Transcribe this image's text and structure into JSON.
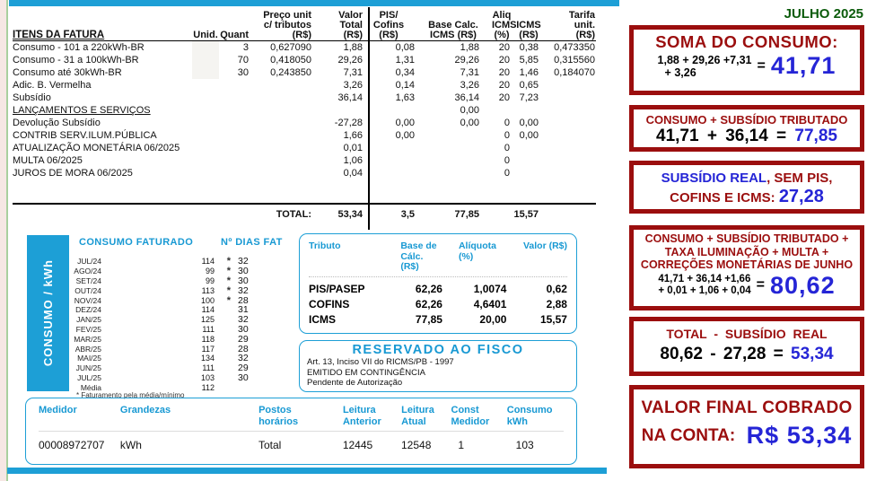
{
  "month_label": "JULHO 2025",
  "colors": {
    "accent_blue": "#1d9fd6",
    "dark_red": "#9b0e0e",
    "result_blue": "#2525d6",
    "dark_green": "#0b5b0b"
  },
  "bill": {
    "header": {
      "itens": "ITENS DA FATURA",
      "unid": "Unid.",
      "quant": "Quant",
      "preco": "Preço unit\nc/ tributos\n(R$)",
      "valor": "Valor\nTotal\n(R$)",
      "pis": "PIS/\nCofins\n(R$)",
      "base": "Base Calc.\nICMS (R$)",
      "aliq": "Aliq\nICMS\n(%)",
      "icms": "ICMS\n(R$)",
      "tarifa": "Tarifa\nunit.\n(R$)"
    },
    "consumption_rows": [
      {
        "item": "Consumo - 101 a 220kWh-BR",
        "unid": "",
        "quant": "3",
        "preco": "0,627090",
        "valor": "1,88",
        "pis": "0,08",
        "base": "1,88",
        "aliq": "20",
        "icms": "0,38",
        "tarifa": "0,473350"
      },
      {
        "item": "Consumo - 31 a 100kWh-BR",
        "unid": "",
        "quant": "70",
        "preco": "0,418050",
        "valor": "29,26",
        "pis": "1,31",
        "base": "29,26",
        "aliq": "20",
        "icms": "5,85",
        "tarifa": "0,315560"
      },
      {
        "item": "Consumo até 30kWh-BR",
        "unid": "",
        "quant": "30",
        "preco": "0,243850",
        "valor": "7,31",
        "pis": "0,34",
        "base": "7,31",
        "aliq": "20",
        "icms": "1,46",
        "tarifa": "0,184070"
      },
      {
        "item": "Adic. B. Vermelha",
        "unid": "",
        "quant": "",
        "preco": "",
        "valor": "3,26",
        "pis": "0,14",
        "base": "3,26",
        "aliq": "20",
        "icms": "0,65",
        "tarifa": ""
      },
      {
        "item": "Subsídio",
        "unid": "",
        "quant": "",
        "preco": "",
        "valor": "36,14",
        "pis": "1,63",
        "base": "36,14",
        "aliq": "20",
        "icms": "7,23",
        "tarifa": ""
      }
    ],
    "section2": {
      "label": "LANÇAMENTOS E SERVIÇOS",
      "base": "0,00"
    },
    "service_rows": [
      {
        "item": "Devolução Subsídio",
        "unid": "",
        "quant": "",
        "preco": "",
        "valor": "-27,28",
        "pis": "0,00",
        "base": "0,00",
        "aliq": "0",
        "icms": "0,00",
        "tarifa": ""
      },
      {
        "item": "CONTRIB SERV.ILUM.PÚBLICA",
        "unid": "",
        "quant": "",
        "preco": "",
        "valor": "1,66",
        "pis": "0,00",
        "base": "",
        "aliq": "0",
        "icms": "0,00",
        "tarifa": ""
      },
      {
        "item": "ATUALIZAÇÃO MONETÁRIA 06/2025",
        "unid": "",
        "quant": "",
        "preco": "",
        "valor": "0,01",
        "pis": "",
        "base": "",
        "aliq": "0",
        "icms": "",
        "tarifa": ""
      },
      {
        "item": "MULTA 06/2025",
        "unid": "",
        "quant": "",
        "preco": "",
        "valor": "1,06",
        "pis": "",
        "base": "",
        "aliq": "0",
        "icms": "",
        "tarifa": ""
      },
      {
        "item": "JUROS DE MORA 06/2025",
        "unid": "",
        "quant": "",
        "preco": "",
        "valor": "0,04",
        "pis": "",
        "base": "",
        "aliq": "0",
        "icms": "",
        "tarifa": ""
      }
    ],
    "total": {
      "label": "TOTAL:",
      "valor": "53,34",
      "pis": "3,5",
      "base": "77,85",
      "icms": "15,57"
    }
  },
  "consumption": {
    "banner": "CONSUMO / kWh",
    "title": "CONSUMO FATURADO",
    "days_title": "Nº DIAS FAT",
    "footnote": "* Faturamento pela média/mínimo",
    "rows": [
      {
        "month": "JUL/24",
        "value": "114",
        "star": "*",
        "days": "32"
      },
      {
        "month": "AGO/24",
        "value": "99",
        "star": "*",
        "days": "30"
      },
      {
        "month": "SET/24",
        "value": "99",
        "star": "*",
        "days": "30"
      },
      {
        "month": "OUT/24",
        "value": "113",
        "star": "*",
        "days": "32"
      },
      {
        "month": "NOV/24",
        "value": "100",
        "star": "*",
        "days": "28"
      },
      {
        "month": "DEZ/24",
        "value": "114",
        "star": "",
        "days": "31"
      },
      {
        "month": "JAN/25",
        "value": "125",
        "star": "",
        "days": "32"
      },
      {
        "month": "FEV/25",
        "value": "111",
        "star": "",
        "days": "30"
      },
      {
        "month": "MAR/25",
        "value": "118",
        "star": "",
        "days": "29"
      },
      {
        "month": "ABR/25",
        "value": "117",
        "star": "",
        "days": "28"
      },
      {
        "month": "MAI/25",
        "value": "134",
        "star": "",
        "days": "32"
      },
      {
        "month": "JUN/25",
        "value": "111",
        "star": "",
        "days": "29"
      },
      {
        "month": "JUL/25",
        "value": "103",
        "star": "",
        "days": "30"
      },
      {
        "month": "Média",
        "value": "112",
        "star": "",
        "days": ""
      }
    ]
  },
  "taxes": {
    "header": {
      "tributo": "Tributo",
      "base": "Base de\nCálc. (R$)",
      "aliquota": "Alíquota\n(%)",
      "valor": "Valor (R$)"
    },
    "rows": [
      {
        "name": "PIS/PASEP",
        "base": "62,26",
        "aliquota": "1,0074",
        "valor": "0,62"
      },
      {
        "name": "COFINS",
        "base": "62,26",
        "aliquota": "4,6401",
        "valor": "2,88"
      },
      {
        "name": "ICMS",
        "base": "77,85",
        "aliquota": "20,00",
        "valor": "15,57"
      }
    ]
  },
  "fisco": {
    "title": "RESERVADO AO FISCO",
    "lines": [
      "Art. 13, Inciso VII do RICMS/PB - 1997",
      "EMITIDO EM CONTINGÊNCIA",
      "Pendente de Autorização"
    ]
  },
  "meter": {
    "header": {
      "medidor": "Medidor",
      "grandezas": "Grandezas",
      "postos": "Postos\nhorários",
      "anterior": "Leitura\nAnterior",
      "atual": "Leitura\nAtual",
      "const": "Const\nMedidor",
      "consumo": "Consumo\nkWh"
    },
    "rows": [
      {
        "medidor": "00008972707",
        "grandezas": "kWh",
        "postos": "Total",
        "anterior": "12445",
        "atual": "12548",
        "const": "1",
        "consumo": "103"
      }
    ]
  },
  "annotations": {
    "box1": {
      "title": "SOMA DO CONSUMO:",
      "expr1": "1,88 + 29,26 +7,31",
      "expr2": "+ 3,26",
      "equals": "=",
      "result": "41,71"
    },
    "box2": {
      "title": "CONSUMO + SUBSÍDIO TRIBUTADO",
      "expr": "41,71 + 36,14 =",
      "result": "77,85"
    },
    "box3": {
      "title_blue": "SUBSÍDIO REAL",
      "title_red": ", SEM PIS,",
      "line2_red": "COFINS E ICMS:",
      "result": "27,28"
    },
    "box4": {
      "title1": "CONSUMO + SUBSÍDIO TRIBUTADO +",
      "title2": "TAXA ILUMINAÇÃO + MULTA +",
      "title3": "CORREÇÕES MONETÁRIAS DE JUNHO",
      "expr1": "41,71 + 36,14 +1,66",
      "expr2": "+ 0,01 + 1,06 + 0,04",
      "equals": "=",
      "result": "80,62"
    },
    "box5": {
      "title": "TOTAL - SUBSÍDIO REAL",
      "expr": "80,62 - 27,28 =",
      "result": "53,34"
    },
    "box6": {
      "title1": "VALOR FINAL COBRADO",
      "title2": "NA CONTA:",
      "result": "R$ 53,34"
    }
  }
}
